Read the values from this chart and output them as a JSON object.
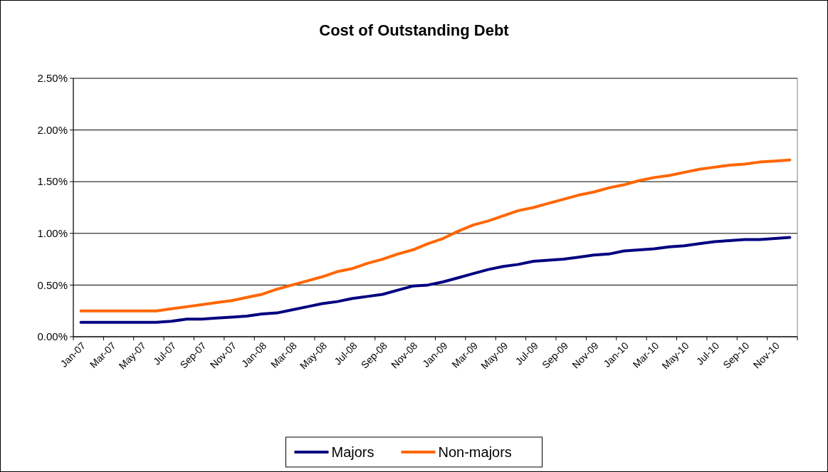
{
  "chart_data": {
    "type": "line",
    "title": "Cost of Outstanding Debt",
    "categories": [
      "Jan-07",
      null,
      "Mar-07",
      null,
      "May-07",
      null,
      "Jul-07",
      null,
      "Sep-07",
      null,
      "Nov-07",
      null,
      "Jan-08",
      null,
      "Mar-08",
      null,
      "May-08",
      null,
      "Jul-08",
      null,
      "Sep-08",
      null,
      "Nov-08",
      null,
      "Jan-09",
      null,
      "Mar-09",
      null,
      "May-09",
      null,
      "Jul-09",
      null,
      "Sep-09",
      null,
      "Nov-09",
      null,
      "Jan-10",
      null,
      "Mar-10",
      null,
      "May-10",
      null,
      "Jul-10",
      null,
      "Sep-10",
      null,
      "Nov-10",
      null
    ],
    "series": [
      {
        "name": "Majors",
        "color": "#000080",
        "values": [
          0.14,
          0.14,
          0.14,
          0.14,
          0.14,
          0.14,
          0.15,
          0.17,
          0.17,
          0.18,
          0.19,
          0.2,
          0.22,
          0.23,
          0.26,
          0.29,
          0.32,
          0.34,
          0.37,
          0.39,
          0.41,
          0.45,
          0.49,
          0.5,
          0.53,
          0.57,
          0.61,
          0.65,
          0.68,
          0.7,
          0.73,
          0.74,
          0.75,
          0.77,
          0.79,
          0.8,
          0.83,
          0.84,
          0.85,
          0.87,
          0.88,
          0.9,
          0.92,
          0.93,
          0.94,
          0.94,
          0.95,
          0.96
        ]
      },
      {
        "name": "Non-majors",
        "color": "#ff6600",
        "values": [
          0.25,
          0.25,
          0.25,
          0.25,
          0.25,
          0.25,
          0.27,
          0.29,
          0.31,
          0.33,
          0.35,
          0.38,
          0.41,
          0.46,
          0.5,
          0.54,
          0.58,
          0.63,
          0.66,
          0.71,
          0.75,
          0.8,
          0.84,
          0.9,
          0.95,
          1.02,
          1.08,
          1.12,
          1.17,
          1.22,
          1.25,
          1.29,
          1.33,
          1.37,
          1.4,
          1.44,
          1.47,
          1.51,
          1.54,
          1.56,
          1.59,
          1.62,
          1.64,
          1.66,
          1.67,
          1.69,
          1.7,
          1.71
        ]
      }
    ],
    "ylim": [
      0,
      2.5
    ],
    "yticks": [
      {
        "value": 0,
        "label": "0.00%"
      },
      {
        "value": 0.5,
        "label": "0.50%"
      },
      {
        "value": 1,
        "label": "1.00%"
      },
      {
        "value": 1.5,
        "label": "1.50%"
      },
      {
        "value": 2,
        "label": "2.00%"
      },
      {
        "value": 2.5,
        "label": "2.50%"
      }
    ],
    "grid": "y",
    "legend": "bottom",
    "marker": "none",
    "line_style": "solid"
  }
}
